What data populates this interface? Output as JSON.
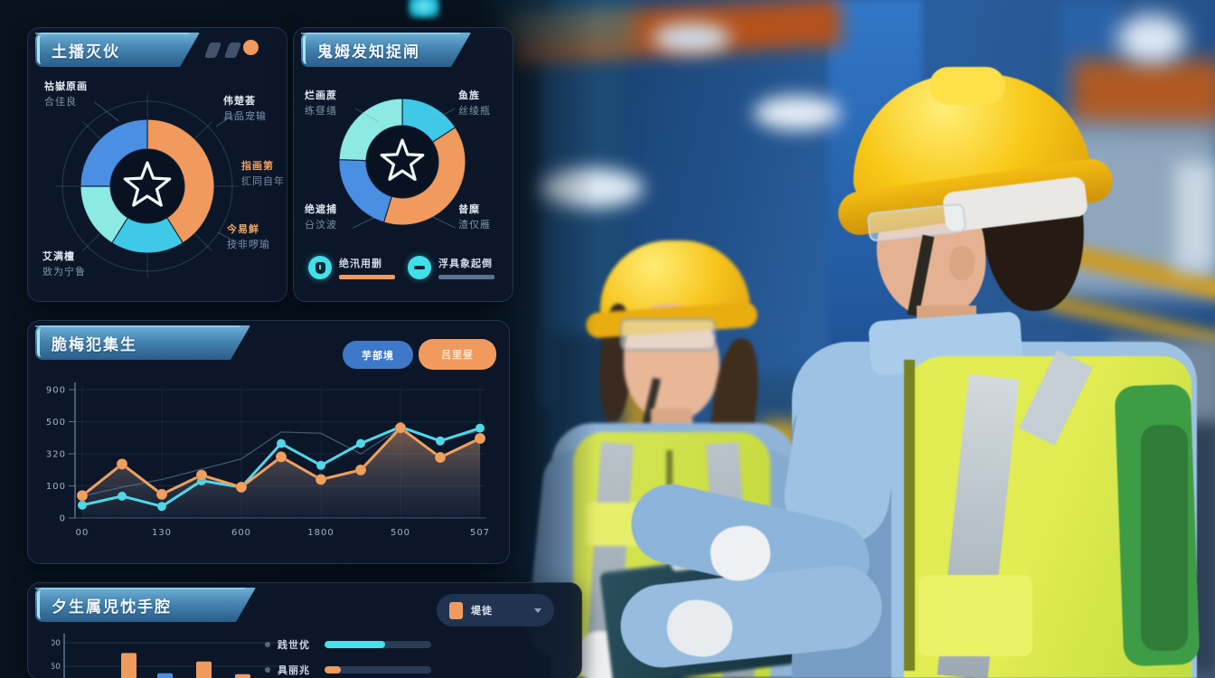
{
  "accent_colors": {
    "blue": "#4b8fe2",
    "orange": "#f09a5e",
    "bright_cyan": "#3fc9e8",
    "pale_cyan": "#8ce9e4",
    "slate": "#5a7190",
    "panel_background": "#0c182a",
    "header_blue": "#4585b1"
  },
  "panel1": {
    "callouts": [
      {
        "line1": "祜嶽原画",
        "line2": "合佳良",
        "pos": "top-left"
      },
      {
        "line1": "伟楚荟",
        "line2": "具品宠输",
        "pos": "right-top"
      },
      {
        "line1": "指画第",
        "line2": "㧟同自年",
        "pos": "right-mid"
      },
      {
        "line1": "今易鲜",
        "line2": "技非啰瑜",
        "pos": "right-bottom"
      },
      {
        "line1": "艾满檀",
        "line2": "敚为宁鲁",
        "pos": "bottom-left"
      }
    ]
  },
  "panel2": {
    "callouts": [
      {
        "line1": "烂画蔗",
        "line2": "练昼缮",
        "pos": "top-left"
      },
      {
        "line1": "鱼旌",
        "line2": "丝绫瓶",
        "pos": "top-right"
      },
      {
        "line1": "绝遮捕",
        "line2": "㕣汶波",
        "pos": "bottom-left"
      },
      {
        "line1": "㫺糜",
        "line2": "渣仅雁",
        "pos": "bottom-right"
      }
    ],
    "legend": [
      {
        "icon": "gauge-icon",
        "label": "绝汛用删",
        "bar_color": "#f09a5e"
      },
      {
        "icon": "minus-icon",
        "label": "浮具象起倒",
        "bar_color": "#5a7190"
      }
    ]
  },
  "panel3": {
    "buttons": [
      {
        "label": "芋部境",
        "color": "#3e78c8"
      },
      {
        "label": "吕里昼",
        "color": "#f09a5e"
      }
    ]
  },
  "panel4": {
    "legend_pill": {
      "label": "堤徒",
      "swatch": "#f09a5e"
    },
    "progress": [
      {
        "label": "践世优",
        "percent": 57,
        "color": "#49e0e8"
      },
      {
        "label": "具丽兆",
        "percent": 15,
        "color": "#f09a5e"
      }
    ]
  },
  "chart_data": [
    {
      "type": "pie",
      "variant": "donut",
      "title": "土播灭伙",
      "center_icon": "star",
      "segments": [
        {
          "name": "orange",
          "start": 0,
          "end": 148,
          "value": 41,
          "color": "#f09a5e"
        },
        {
          "name": "bright-cyan",
          "start": 148,
          "end": 212,
          "value": 18,
          "color": "#3fc9e8"
        },
        {
          "name": "pale-cyan",
          "start": 212,
          "end": 270,
          "value": 16,
          "color": "#8ce9e4"
        },
        {
          "name": "blue",
          "start": 270,
          "end": 360,
          "value": 25,
          "color": "#4b8fe2"
        }
      ]
    },
    {
      "type": "pie",
      "variant": "donut",
      "title": "鬼姆发知捉闸",
      "center_icon": "star",
      "segments": [
        {
          "name": "bright-cyan",
          "start": 0,
          "end": 57,
          "value": 16,
          "color": "#3fc9e8"
        },
        {
          "name": "orange",
          "start": 57,
          "end": 197,
          "value": 39,
          "color": "#f09a5e"
        },
        {
          "name": "blue",
          "start": 197,
          "end": 272,
          "value": 21,
          "color": "#4b8fe2"
        },
        {
          "name": "pale-cyan",
          "start": 272,
          "end": 360,
          "value": 24,
          "color": "#8ce9e4"
        }
      ]
    },
    {
      "type": "line",
      "title": "脆梅犯集生",
      "y_ticks": [
        "900",
        "500",
        "320",
        "100",
        "0"
      ],
      "x_ticks": [
        "00",
        "130",
        "600",
        "1800",
        "500",
        "507"
      ],
      "value_range": [
        0,
        500
      ],
      "grid": true,
      "series": [
        {
          "name": "cyan-line",
          "color": "#4fd8ea",
          "values": [
            50,
            85,
            45,
            145,
            120,
            290,
            205,
            290,
            355,
            300,
            350
          ]
        },
        {
          "name": "orange-line",
          "color": "#f0a05e",
          "area": true,
          "values": [
            87,
            210,
            92,
            167,
            120,
            238,
            150,
            187,
            351,
            236,
            310
          ]
        },
        {
          "name": "slate-line",
          "color": "#7688a6",
          "thin": true,
          "values": [
            85,
            120,
            150,
            190,
            230,
            335,
            330,
            250,
            350,
            300,
            340
          ]
        }
      ]
    },
    {
      "type": "bar",
      "title": "夕生属児忱手腔",
      "y_ticks": [
        "100",
        "50"
      ],
      "ylim": [
        0,
        100
      ],
      "values": [
        78,
        35,
        60,
        33
      ],
      "colors": [
        "#f09a5e",
        "#4b8fe2",
        "#f09a5e",
        "#f09a5e"
      ]
    }
  ]
}
